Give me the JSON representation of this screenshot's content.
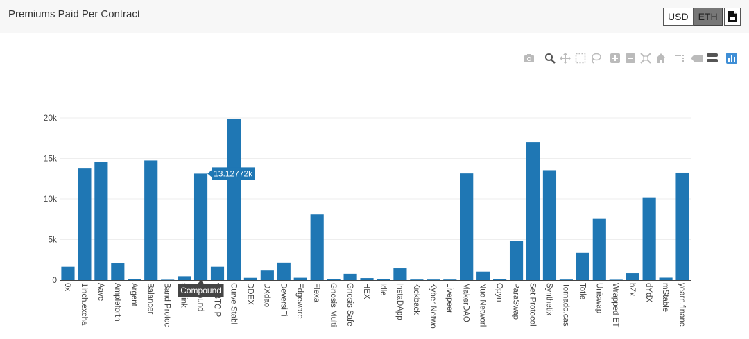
{
  "header": {
    "title": "Premiums Paid Per Contract",
    "currency_options": [
      "USD",
      "ETH"
    ],
    "selected_currency": "ETH",
    "csv_icon": "csv-file-icon"
  },
  "toolbar": {
    "icons": [
      "camera-icon",
      "zoom-icon",
      "pan-icon",
      "box-select-icon",
      "lasso-select-icon",
      "zoom-in-icon",
      "zoom-out-icon",
      "autoscale-icon",
      "reset-axes-icon",
      "spike-lines-icon",
      "compare-hover-icon",
      "closest-hover-icon",
      "plotly-logo-icon"
    ]
  },
  "tooltip": {
    "category": "Compound",
    "value_label": "13.12772k"
  },
  "colors": {
    "bar": "#1f77b4",
    "grid": "#eeeeee",
    "axis": "#444444"
  },
  "chart_data": {
    "type": "bar",
    "title": "",
    "xlabel": "",
    "ylabel": "",
    "ylim": [
      0,
      20500
    ],
    "yticks": [
      0,
      5000,
      10000,
      15000,
      20000
    ],
    "ytick_labels": [
      "0",
      "5k",
      "10k",
      "15k",
      "20k"
    ],
    "grid": true,
    "categories": [
      "0x",
      "1inch.excha",
      "Aave",
      "Ampleforth",
      "Argent",
      "Balancer",
      "Band Protoc",
      "sinLink",
      "mpound",
      "ve BTC P",
      "Curve Stabl",
      "DDEX",
      "DXdao",
      "DeversiFi",
      "Edgeware",
      "Flexa",
      "Gnosis Multi",
      "Gnosis Safe",
      "HEX",
      "Idle",
      "InstaDApp",
      "Kickback",
      "Kyber Netwo",
      "Livepeer",
      "MakerDAO",
      "Nuo Networl",
      "Opyn",
      "ParaSwap",
      "Set Protocol",
      "Synthetix",
      "Tornado.cas",
      "Totle",
      "Uniswap",
      "Wrapped ET",
      "bZx",
      "dYdX",
      "mStable",
      "yearn.financ"
    ],
    "values": [
      1650,
      13750,
      14600,
      2050,
      150,
      14750,
      50,
      480,
      13127.72,
      1650,
      19900,
      280,
      1180,
      2150,
      290,
      8100,
      140,
      780,
      250,
      90,
      1450,
      70,
      70,
      70,
      13150,
      1050,
      120,
      4850,
      17000,
      13550,
      70,
      3350,
      7550,
      50,
      850,
      10200,
      300,
      13250
    ]
  }
}
